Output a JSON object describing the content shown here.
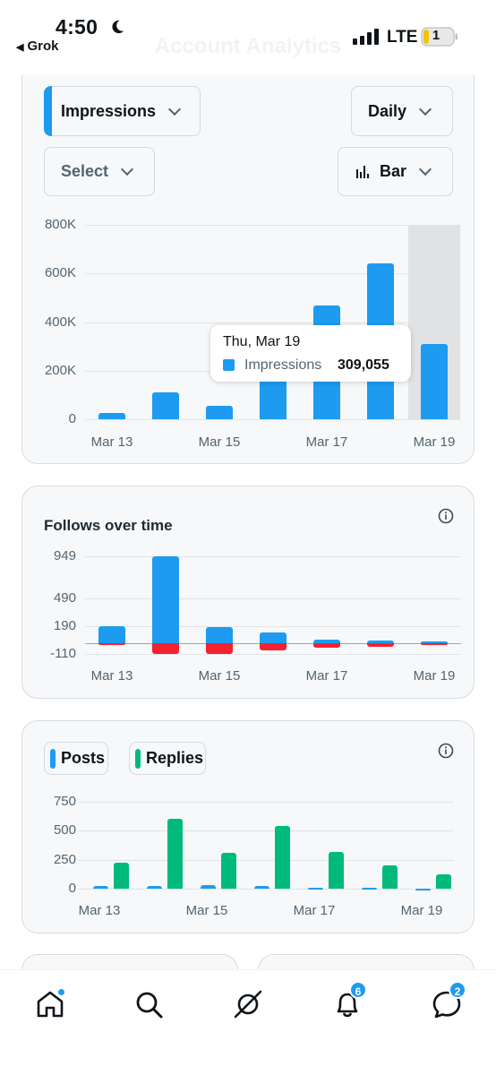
{
  "status_bar": {
    "time": "4:50",
    "back_app": "Grok",
    "network": "LTE",
    "battery": "1"
  },
  "header": {
    "title": "Account Analytics"
  },
  "impressions_card": {
    "metric_label": "Impressions",
    "period_label": "Daily",
    "compare_label": "Select",
    "chart_type_label": "Bar",
    "chart_data": {
      "type": "bar",
      "categories": [
        "Mar 13",
        "Mar 14",
        "Mar 15",
        "Mar 16",
        "Mar 17",
        "Mar 18",
        "Mar 19"
      ],
      "series": [
        {
          "name": "Impressions",
          "values": [
            24000,
            112000,
            55000,
            205000,
            467000,
            640000,
            309055
          ]
        }
      ],
      "x_tick_labels": [
        "Mar 13",
        "Mar 15",
        "Mar 17",
        "Mar 19"
      ],
      "y_tick_labels": [
        "800K",
        "600K",
        "400K",
        "200K",
        "0"
      ],
      "ylim": [
        0,
        800000
      ],
      "highlighted_category": "Mar 19",
      "color": "#1d9bf0"
    },
    "tooltip": {
      "title": "Thu, Mar 19",
      "series": "Impressions",
      "value": "309,055"
    }
  },
  "follows_card": {
    "title": "Follows over time",
    "chart_data": {
      "type": "bar",
      "categories": [
        "Mar 13",
        "Mar 14",
        "Mar 15",
        "Mar 16",
        "Mar 17",
        "Mar 18",
        "Mar 19"
      ],
      "series": [
        {
          "values": [
            190,
            949,
            180,
            120,
            35,
            30,
            15
          ],
          "color": "#1d9bf0"
        },
        {
          "values": [
            -10,
            -110,
            -110,
            -75,
            -45,
            -35,
            -8
          ],
          "color": "#f4212e"
        }
      ],
      "x_tick_labels": [
        "Mar 13",
        "Mar 15",
        "Mar 17",
        "Mar 19"
      ],
      "y_tick_labels": [
        "949",
        "490",
        "190",
        "-110"
      ],
      "ylim": [
        -110,
        949
      ]
    }
  },
  "posts_card": {
    "legend": [
      {
        "label": "Posts",
        "color": "#1d9bf0"
      },
      {
        "label": "Replies",
        "color": "#00ba7c"
      }
    ],
    "chart_data": {
      "type": "bar",
      "categories": [
        "Mar 13",
        "Mar 14",
        "Mar 15",
        "Mar 16",
        "Mar 17",
        "Mar 18",
        "Mar 19"
      ],
      "series": [
        {
          "name": "Posts",
          "values": [
            22,
            20,
            28,
            20,
            8,
            5,
            2
          ]
        },
        {
          "name": "Replies",
          "values": [
            225,
            605,
            310,
            545,
            320,
            200,
            125
          ]
        }
      ],
      "x_tick_labels": [
        "Mar 13",
        "Mar 15",
        "Mar 17",
        "Mar 19"
      ],
      "y_tick_labels": [
        "750",
        "500",
        "250",
        "0"
      ],
      "ylim": [
        0,
        750
      ]
    }
  },
  "tabbar": {
    "items": [
      {
        "name": "home",
        "badge": ""
      },
      {
        "name": "search",
        "badge": ""
      },
      {
        "name": "grok",
        "badge": ""
      },
      {
        "name": "notifications",
        "badge": "6"
      },
      {
        "name": "messages",
        "badge": "2"
      }
    ]
  }
}
